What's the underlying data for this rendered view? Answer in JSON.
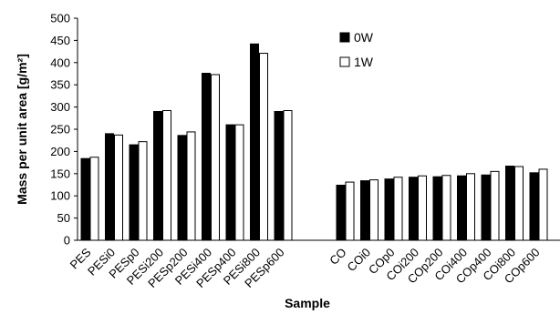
{
  "chart_data": {
    "type": "bar",
    "xlabel": "Sample",
    "ylabel": "Mass per unit area [g/m²]",
    "ylim": [
      0,
      500
    ],
    "yticks": [
      "0",
      "50",
      "100",
      "150",
      "200",
      "250",
      "300",
      "350",
      "400",
      "450",
      "500"
    ],
    "grid": false,
    "legend_position": "top-right",
    "groups": [
      {
        "categories": [
          "PES",
          "PESi0",
          "PESp0",
          "PESi200",
          "PESp200",
          "PESi400",
          "PESp400",
          "PESi800",
          "PESp600"
        ]
      },
      {
        "categories": [
          "CO",
          "COi0",
          "COp0",
          "COi200",
          "COp200",
          "COi400",
          "COp400",
          "COi800",
          "COp600"
        ]
      }
    ],
    "series": [
      {
        "name": "0W",
        "color": "#000000",
        "values": [
          184,
          240,
          215,
          290,
          236,
          376,
          260,
          442,
          290,
          124,
          134,
          138,
          142,
          143,
          145,
          147,
          167,
          152
        ]
      },
      {
        "name": "1W",
        "color": "#ffffff",
        "values": [
          187,
          237,
          222,
          292,
          244,
          373,
          260,
          421,
          292,
          131,
          136,
          142,
          145,
          146,
          150,
          155,
          166,
          160
        ]
      }
    ]
  }
}
